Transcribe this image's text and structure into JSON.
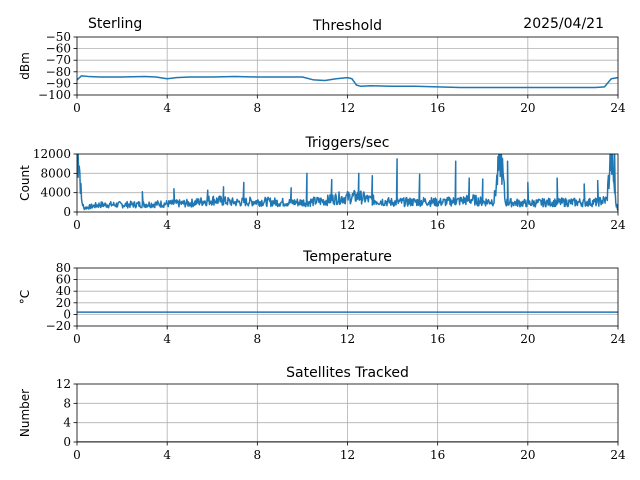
{
  "header": {
    "station": "Sterling",
    "date": "2025/04/21"
  },
  "chart_data": [
    {
      "type": "line",
      "title": "Threshold",
      "ylabel": "dBm",
      "xlim": [
        0,
        24
      ],
      "xticks": [
        "0",
        "4",
        "8",
        "12",
        "16",
        "20",
        "24"
      ],
      "ylim": [
        -100,
        -50
      ],
      "yticks": [
        "−50",
        "−60",
        "−70",
        "−80",
        "−90",
        "−100"
      ],
      "grid": true,
      "color": "#1f77b4",
      "x": [
        0,
        0.2,
        0.5,
        1,
        2,
        3,
        3.5,
        4,
        4.4,
        5,
        6,
        7,
        8,
        9,
        10,
        10.5,
        11,
        11.5,
        12,
        12.2,
        12.4,
        12.6,
        13,
        14,
        15,
        16,
        17,
        18,
        19,
        20,
        21,
        22,
        23,
        23.4,
        23.7,
        24
      ],
      "y": [
        -87,
        -83.5,
        -84,
        -84.5,
        -84.5,
        -84,
        -84.5,
        -86,
        -85,
        -84.5,
        -84.5,
        -84,
        -84.5,
        -84.5,
        -84.5,
        -87,
        -87.5,
        -86,
        -85,
        -86,
        -91.5,
        -92.5,
        -92,
        -92.5,
        -92.5,
        -93,
        -93.5,
        -93.5,
        -93.5,
        -93.5,
        -93.5,
        -93.5,
        -93.5,
        -93,
        -86,
        -85
      ]
    },
    {
      "type": "line",
      "title": "Triggers/sec",
      "ylabel": "Count",
      "xlim": [
        0,
        24
      ],
      "xticks": [
        "0",
        "4",
        "8",
        "12",
        "16",
        "20",
        "24"
      ],
      "ylim": [
        0,
        12000
      ],
      "yticks": [
        "0",
        "4000",
        "8000",
        "12000"
      ],
      "grid": true,
      "color": "#1f77b4",
      "x": [
        0,
        0.1,
        0.2,
        0.3,
        1,
        2,
        3,
        4,
        5,
        6,
        7,
        8,
        9,
        10,
        11,
        11.5,
        12,
        12.5,
        13,
        14,
        15,
        15.5,
        16,
        17,
        17.5,
        18,
        18.5,
        18.8,
        19,
        20,
        21,
        22,
        23,
        23.5,
        23.7,
        23.9,
        24
      ],
      "y": [
        12000,
        10000,
        2500,
        800,
        1500,
        1500,
        1600,
        1700,
        1800,
        2500,
        2000,
        2200,
        2000,
        2000,
        2300,
        2800,
        3000,
        3200,
        2500,
        2000,
        2100,
        2200,
        2000,
        2300,
        2600,
        2100,
        2300,
        12000,
        2000,
        1800,
        2000,
        2000,
        2000,
        2500,
        12000,
        2000,
        300
      ],
      "peaks": [
        {
          "x": 0.05,
          "y": 12000
        },
        {
          "x": 2.9,
          "y": 4200
        },
        {
          "x": 4.3,
          "y": 4800
        },
        {
          "x": 5.8,
          "y": 4500
        },
        {
          "x": 6.5,
          "y": 5200
        },
        {
          "x": 7.4,
          "y": 6100
        },
        {
          "x": 9.5,
          "y": 5000
        },
        {
          "x": 10.2,
          "y": 8000
        },
        {
          "x": 11.3,
          "y": 6700
        },
        {
          "x": 12.5,
          "y": 8000
        },
        {
          "x": 13.1,
          "y": 7500
        },
        {
          "x": 14.2,
          "y": 11000
        },
        {
          "x": 15.2,
          "y": 7800
        },
        {
          "x": 16.8,
          "y": 10500
        },
        {
          "x": 17.4,
          "y": 7000
        },
        {
          "x": 18.0,
          "y": 6800
        },
        {
          "x": 18.8,
          "y": 12000
        },
        {
          "x": 19.1,
          "y": 10500
        },
        {
          "x": 20.0,
          "y": 6100
        },
        {
          "x": 21.3,
          "y": 7000
        },
        {
          "x": 22.5,
          "y": 5800
        },
        {
          "x": 23.1,
          "y": 6500
        },
        {
          "x": 23.7,
          "y": 12000
        },
        {
          "x": 23.85,
          "y": 12000
        }
      ]
    },
    {
      "type": "line",
      "title": "Temperature",
      "ylabel": "°C",
      "xlim": [
        0,
        24
      ],
      "xticks": [
        "0",
        "4",
        "8",
        "12",
        "16",
        "20",
        "24"
      ],
      "ylim": [
        -20,
        80
      ],
      "yticks": [
        "80",
        "60",
        "40",
        "20",
        "0",
        "−20"
      ],
      "grid": true,
      "color": "#1f77b4",
      "x": [
        0,
        24
      ],
      "y": [
        4,
        4
      ]
    },
    {
      "type": "line",
      "title": "Satellites Tracked",
      "ylabel": "Number",
      "xlim": [
        0,
        24
      ],
      "xticks": [
        "0",
        "4",
        "8",
        "12",
        "16",
        "20",
        "24"
      ],
      "ylim": [
        0,
        12
      ],
      "yticks": [
        "12",
        "8",
        "4",
        "0"
      ],
      "grid": true,
      "color": "#1f77b4",
      "x": [
        0,
        24
      ],
      "y": [
        0,
        0
      ]
    }
  ]
}
